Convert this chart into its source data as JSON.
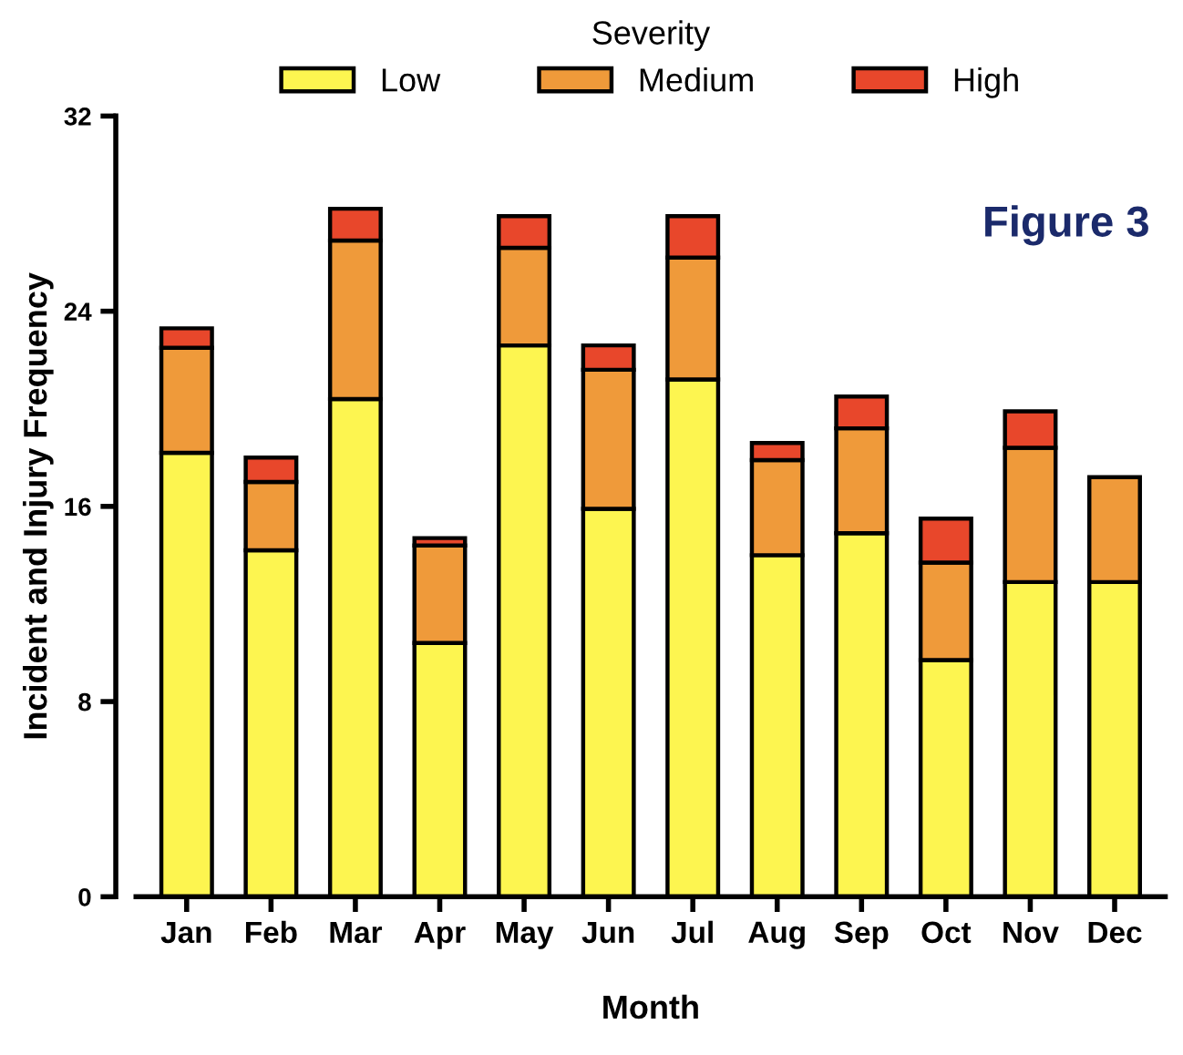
{
  "chart_data": {
    "type": "bar",
    "stacked": true,
    "categories": [
      "Jan",
      "Feb",
      "Mar",
      "Apr",
      "May",
      "Jun",
      "Jul",
      "Aug",
      "Sep",
      "Oct",
      "Nov",
      "Dec"
    ],
    "series": [
      {
        "name": "Low",
        "color": "#fdf550",
        "values": [
          18.2,
          14.2,
          20.4,
          10.4,
          22.6,
          15.9,
          21.2,
          14.0,
          14.9,
          9.7,
          12.9,
          12.9
        ]
      },
      {
        "name": "Medium",
        "color": "#ef9a3a",
        "values": [
          4.3,
          2.8,
          6.5,
          4.0,
          4.0,
          5.7,
          5.0,
          3.9,
          4.3,
          4.0,
          5.5,
          4.3
        ]
      },
      {
        "name": "High",
        "color": "#e8472b",
        "values": [
          0.8,
          1.0,
          1.3,
          0.3,
          1.3,
          1.0,
          1.7,
          0.7,
          1.3,
          1.8,
          1.5,
          null
        ]
      }
    ],
    "xlabel": "Month",
    "ylabel": "Incident and Injury Frequency",
    "legend_title": "Severity",
    "legend": "top",
    "ylim": [
      0,
      32
    ],
    "yticks": [
      0,
      8,
      16,
      24,
      32
    ],
    "grid": false,
    "annotations": [
      "Figure 3"
    ]
  }
}
